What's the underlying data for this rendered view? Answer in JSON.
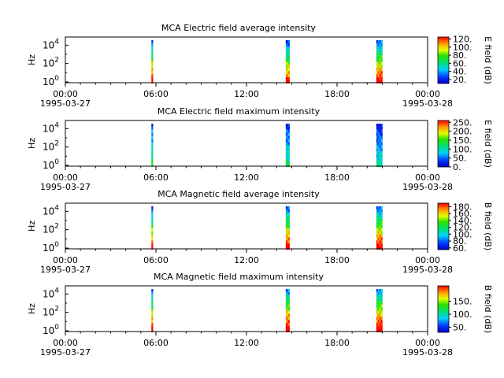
{
  "figure": {
    "time_ticks": [
      {
        "hour": 0,
        "label": "00:00",
        "date": "1995-03-27"
      },
      {
        "hour": 6,
        "label": "06:00",
        "date": ""
      },
      {
        "hour": 12,
        "label": "12:00",
        "date": ""
      },
      {
        "hour": 18,
        "label": "18:00",
        "date": ""
      },
      {
        "hour": 24,
        "label": "00:00",
        "date": "1995-03-28"
      }
    ]
  },
  "chart_data": [
    {
      "type": "heatmap",
      "title": "MCA  Electric field average intensity",
      "ylabel": "Hz",
      "y_scale": "log",
      "y_ticks": [
        {
          "exp": "0"
        },
        {
          "exp": "2"
        },
        {
          "exp": "4"
        }
      ],
      "colorbar": {
        "label": "E field (dB)",
        "range": [
          10,
          125
        ],
        "ticks": [
          "20.",
          "40.",
          "60.",
          "80.",
          "100.",
          "120."
        ]
      },
      "bursts": [
        {
          "start_hour": 5.7,
          "end_hour": 5.8,
          "level": 0.55
        },
        {
          "start_hour": 14.6,
          "end_hour": 14.85,
          "level": 0.5
        },
        {
          "start_hour": 20.6,
          "end_hour": 21.0,
          "level": 0.55
        }
      ]
    },
    {
      "type": "heatmap",
      "title": "MCA  Electric field maximum intensity",
      "ylabel": "Hz",
      "y_scale": "log",
      "y_ticks": [
        {
          "exp": "0"
        },
        {
          "exp": "2"
        },
        {
          "exp": "4"
        }
      ],
      "colorbar": {
        "label": "E field (dB)",
        "range": [
          0,
          260
        ],
        "ticks": [
          "0.",
          "50.",
          "100.",
          "150.",
          "200.",
          "250."
        ]
      },
      "bursts": [
        {
          "start_hour": 5.7,
          "end_hour": 5.8,
          "level": 0.3
        },
        {
          "start_hour": 14.6,
          "end_hour": 14.85,
          "level": 0.25
        },
        {
          "start_hour": 20.6,
          "end_hour": 21.0,
          "level": 0.2
        }
      ]
    },
    {
      "type": "heatmap",
      "title": "MCA  Magnetic field average intensity",
      "ylabel": "Hz",
      "y_scale": "log",
      "y_ticks": [
        {
          "exp": "0"
        },
        {
          "exp": "2"
        },
        {
          "exp": "4"
        }
      ],
      "colorbar": {
        "label": "B field (dB)",
        "range": [
          55,
          190
        ],
        "ticks": [
          "60.",
          "80.",
          "100.",
          "120.",
          "140.",
          "160.",
          "180."
        ]
      },
      "bursts": [
        {
          "start_hour": 5.7,
          "end_hour": 5.8,
          "level": 0.5
        },
        {
          "start_hour": 14.6,
          "end_hour": 14.85,
          "level": 0.55
        },
        {
          "start_hour": 20.6,
          "end_hour": 21.0,
          "level": 0.55
        }
      ]
    },
    {
      "type": "heatmap",
      "title": "MCA  Magnetic field maximum intensity",
      "ylabel": "Hz",
      "y_scale": "log",
      "y_ticks": [
        {
          "exp": "0"
        },
        {
          "exp": "2"
        },
        {
          "exp": "4"
        }
      ],
      "colorbar": {
        "label": "B field (dB)",
        "range": [
          30,
          210
        ],
        "ticks": [
          "50.",
          "100.",
          "150."
        ]
      },
      "bursts": [
        {
          "start_hour": 5.7,
          "end_hour": 5.8,
          "level": 0.55
        },
        {
          "start_hour": 14.6,
          "end_hour": 14.85,
          "level": 0.6
        },
        {
          "start_hour": 20.6,
          "end_hour": 21.0,
          "level": 0.6
        }
      ]
    }
  ]
}
